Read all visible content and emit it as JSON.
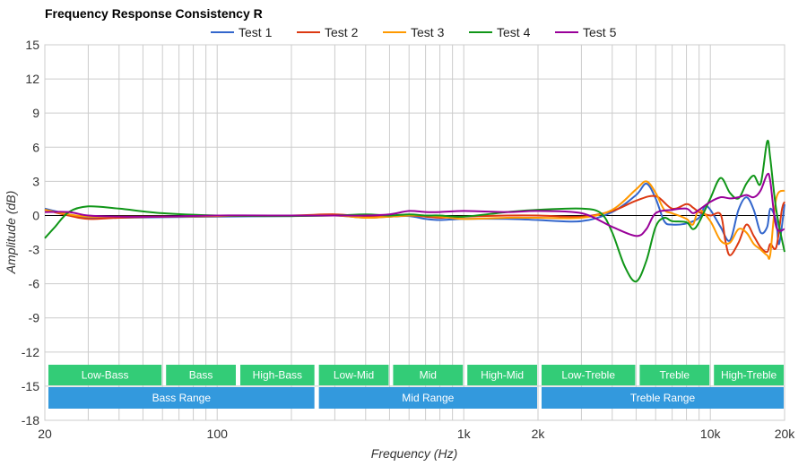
{
  "chart_data": {
    "type": "line",
    "title": "Frequency Response Consistency R",
    "xlabel": "Frequency (Hz)",
    "ylabel": "Amplitude (dB)",
    "xscale": "log",
    "xlim": [
      20,
      20000
    ],
    "ylim": [
      -18,
      15
    ],
    "yticks": [
      15,
      12,
      9,
      6,
      3,
      0,
      -3,
      -6,
      -9,
      -12,
      -15,
      -18
    ],
    "xticks": [
      {
        "value": 20,
        "label": "20"
      },
      {
        "value": 100,
        "label": "100"
      },
      {
        "value": 1000,
        "label": "1k"
      },
      {
        "value": 2000,
        "label": "2k"
      },
      {
        "value": 10000,
        "label": "10k"
      },
      {
        "value": 20000,
        "label": "20k"
      }
    ],
    "grid": true,
    "legend_position": "top",
    "series": [
      {
        "name": "Test 1",
        "color": "#3366cc",
        "points": [
          [
            20,
            0.6
          ],
          [
            25,
            0.1
          ],
          [
            30,
            -0.2
          ],
          [
            40,
            -0.2
          ],
          [
            60,
            -0.15
          ],
          [
            100,
            -0.1
          ],
          [
            200,
            -0.05
          ],
          [
            300,
            0
          ],
          [
            400,
            -0.2
          ],
          [
            500,
            -0.1
          ],
          [
            600,
            -0.05
          ],
          [
            700,
            -0.3
          ],
          [
            800,
            -0.4
          ],
          [
            1000,
            -0.3
          ],
          [
            1500,
            -0.3
          ],
          [
            2000,
            -0.4
          ],
          [
            3000,
            -0.5
          ],
          [
            4000,
            0.3
          ],
          [
            5000,
            1.8
          ],
          [
            5500,
            2.8
          ],
          [
            6000,
            1.5
          ],
          [
            6500,
            -0.5
          ],
          [
            7000,
            -0.8
          ],
          [
            8000,
            -0.7
          ],
          [
            9000,
            -0.2
          ],
          [
            9500,
            0.8
          ],
          [
            10000,
            0.5
          ],
          [
            11000,
            -1.0
          ],
          [
            12000,
            -2.2
          ],
          [
            13000,
            0.5
          ],
          [
            14000,
            1.6
          ],
          [
            15000,
            0.5
          ],
          [
            16000,
            -1.5
          ],
          [
            17000,
            -1.0
          ],
          [
            17500,
            0.6
          ],
          [
            18500,
            -0.5
          ],
          [
            19000,
            -2.5
          ],
          [
            20000,
            1.0
          ]
        ]
      },
      {
        "name": "Test 2",
        "color": "#dc3912",
        "points": [
          [
            20,
            0.5
          ],
          [
            25,
            0.0
          ],
          [
            30,
            -0.3
          ],
          [
            40,
            -0.2
          ],
          [
            60,
            -0.1
          ],
          [
            100,
            -0.05
          ],
          [
            200,
            0.0
          ],
          [
            300,
            0.1
          ],
          [
            400,
            -0.1
          ],
          [
            500,
            -0.1
          ],
          [
            600,
            0.0
          ],
          [
            700,
            -0.1
          ],
          [
            800,
            -0.2
          ],
          [
            1000,
            -0.1
          ],
          [
            1500,
            0.0
          ],
          [
            2000,
            0.0
          ],
          [
            3000,
            -0.1
          ],
          [
            4000,
            0.4
          ],
          [
            5000,
            1.3
          ],
          [
            6000,
            1.7
          ],
          [
            7000,
            0.6
          ],
          [
            8000,
            1.0
          ],
          [
            8500,
            0.7
          ],
          [
            9000,
            0.3
          ],
          [
            10000,
            0.0
          ],
          [
            11000,
            0.1
          ],
          [
            11500,
            -2.2
          ],
          [
            12000,
            -3.5
          ],
          [
            13000,
            -2.4
          ],
          [
            14000,
            -0.8
          ],
          [
            15000,
            -1.8
          ],
          [
            16000,
            -2.8
          ],
          [
            17000,
            -3.2
          ],
          [
            17500,
            -2.5
          ],
          [
            18500,
            -2.8
          ],
          [
            19500,
            0.5
          ],
          [
            20000,
            1.2
          ]
        ]
      },
      {
        "name": "Test 3",
        "color": "#ff9900",
        "points": [
          [
            20,
            0.5
          ],
          [
            25,
            0.1
          ],
          [
            30,
            -0.1
          ],
          [
            40,
            -0.1
          ],
          [
            60,
            -0.1
          ],
          [
            100,
            -0.05
          ],
          [
            200,
            0.0
          ],
          [
            300,
            0.0
          ],
          [
            400,
            -0.2
          ],
          [
            500,
            -0.1
          ],
          [
            600,
            0.0
          ],
          [
            700,
            0.0
          ],
          [
            800,
            -0.1
          ],
          [
            1000,
            -0.3
          ],
          [
            1500,
            -0.2
          ],
          [
            2000,
            -0.2
          ],
          [
            3000,
            -0.2
          ],
          [
            4000,
            0.5
          ],
          [
            5000,
            2.3
          ],
          [
            5500,
            3.0
          ],
          [
            6000,
            2.0
          ],
          [
            6500,
            0.5
          ],
          [
            7000,
            0.2
          ],
          [
            8000,
            -0.3
          ],
          [
            8500,
            -0.8
          ],
          [
            9000,
            0.5
          ],
          [
            10000,
            -0.5
          ],
          [
            11000,
            -2.2
          ],
          [
            12000,
            -2.4
          ],
          [
            13000,
            -1.2
          ],
          [
            14000,
            -1.5
          ],
          [
            15000,
            -2.5
          ],
          [
            16000,
            -3.0
          ],
          [
            17000,
            -3.5
          ],
          [
            17500,
            -3.4
          ],
          [
            18500,
            1.5
          ],
          [
            20000,
            2.2
          ]
        ]
      },
      {
        "name": "Test 4",
        "color": "#109618",
        "points": [
          [
            20,
            -2.0
          ],
          [
            22,
            -1.0
          ],
          [
            25,
            0.3
          ],
          [
            30,
            0.8
          ],
          [
            40,
            0.6
          ],
          [
            60,
            0.2
          ],
          [
            100,
            0.0
          ],
          [
            200,
            -0.05
          ],
          [
            300,
            0.0
          ],
          [
            400,
            0.1
          ],
          [
            500,
            0.0
          ],
          [
            600,
            0.1
          ],
          [
            700,
            0.0
          ],
          [
            800,
            0.0
          ],
          [
            1000,
            -0.1
          ],
          [
            1500,
            0.3
          ],
          [
            2000,
            0.5
          ],
          [
            3000,
            0.6
          ],
          [
            3600,
            0.2
          ],
          [
            4000,
            -1.5
          ],
          [
            4500,
            -4.5
          ],
          [
            5000,
            -5.8
          ],
          [
            5500,
            -4.0
          ],
          [
            6000,
            -1.0
          ],
          [
            6500,
            -0.2
          ],
          [
            7000,
            -0.5
          ],
          [
            8000,
            -0.6
          ],
          [
            8500,
            -1.2
          ],
          [
            9000,
            -0.6
          ],
          [
            10000,
            1.5
          ],
          [
            11000,
            3.3
          ],
          [
            12000,
            2.0
          ],
          [
            13000,
            1.5
          ],
          [
            14000,
            2.8
          ],
          [
            15000,
            3.5
          ],
          [
            16000,
            2.8
          ],
          [
            17000,
            6.5
          ],
          [
            17500,
            5.0
          ],
          [
            18500,
            0.5
          ],
          [
            20000,
            -3.2
          ]
        ]
      },
      {
        "name": "Test 5",
        "color": "#990099",
        "points": [
          [
            20,
            0.3
          ],
          [
            25,
            0.3
          ],
          [
            30,
            0.0
          ],
          [
            40,
            -0.1
          ],
          [
            60,
            -0.1
          ],
          [
            100,
            0.0
          ],
          [
            200,
            0.0
          ],
          [
            300,
            0.0
          ],
          [
            400,
            0.0
          ],
          [
            500,
            0.1
          ],
          [
            600,
            0.4
          ],
          [
            700,
            0.3
          ],
          [
            800,
            0.3
          ],
          [
            1000,
            0.4
          ],
          [
            1500,
            0.3
          ],
          [
            2000,
            0.4
          ],
          [
            3000,
            0.2
          ],
          [
            4000,
            -1.0
          ],
          [
            5000,
            -1.8
          ],
          [
            5500,
            -1.2
          ],
          [
            6000,
            0.2
          ],
          [
            7000,
            0.5
          ],
          [
            8000,
            0.6
          ],
          [
            8500,
            0.2
          ],
          [
            9000,
            0.5
          ],
          [
            10000,
            1.2
          ],
          [
            11000,
            1.6
          ],
          [
            12000,
            1.5
          ],
          [
            13000,
            1.6
          ],
          [
            14000,
            1.8
          ],
          [
            15000,
            1.6
          ],
          [
            16000,
            2.2
          ],
          [
            17000,
            3.6
          ],
          [
            17500,
            3.0
          ],
          [
            18500,
            -1.0
          ],
          [
            20000,
            -1.2
          ]
        ]
      }
    ],
    "bands_top": [
      {
        "label": "Low-Bass",
        "from": 20,
        "to": 60
      },
      {
        "label": "Bass",
        "from": 60,
        "to": 120
      },
      {
        "label": "High-Bass",
        "from": 120,
        "to": 250
      },
      {
        "label": "Low-Mid",
        "from": 250,
        "to": 500
      },
      {
        "label": "Mid",
        "from": 500,
        "to": 1000
      },
      {
        "label": "High-Mid",
        "from": 1000,
        "to": 2000
      },
      {
        "label": "Low-Treble",
        "from": 2000,
        "to": 5000
      },
      {
        "label": "Treble",
        "from": 5000,
        "to": 10000
      },
      {
        "label": "High-Treble",
        "from": 10000,
        "to": 20000
      }
    ],
    "bands_bottom": [
      {
        "label": "Bass Range",
        "from": 20,
        "to": 250
      },
      {
        "label": "Mid Range",
        "from": 250,
        "to": 2000
      },
      {
        "label": "Treble Range",
        "from": 2000,
        "to": 20000
      }
    ],
    "colors": {
      "band_top": "#33cc77",
      "band_bottom": "#3399dd",
      "grid": "#cccccc",
      "zero_line": "#000000"
    }
  }
}
